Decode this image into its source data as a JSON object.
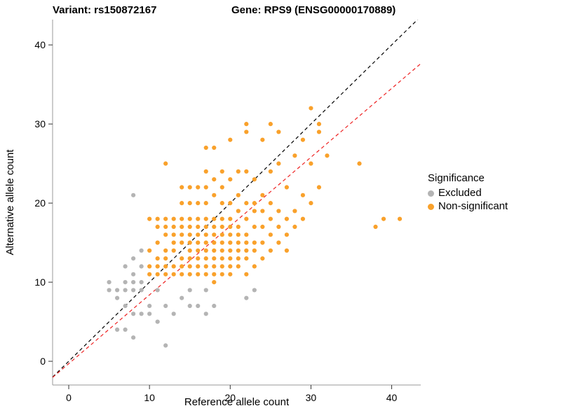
{
  "titles": {
    "variant": "Variant: rs150872167",
    "gene": "Gene: RPS9 (ENSG00000170889)"
  },
  "legend": {
    "title": "Significance",
    "items": [
      {
        "label": "Excluded",
        "color": "#B4B4B4"
      },
      {
        "label": "Non-significant",
        "color": "#F9A12B"
      }
    ]
  },
  "chart_data": {
    "type": "scatter",
    "xlabel": "Reference allele count",
    "ylabel": "Alternative allele count",
    "xlim": [
      -2,
      43.6
    ],
    "ylim": [
      -3,
      43.2
    ],
    "xticks": [
      0,
      10,
      20,
      30,
      40
    ],
    "yticks": [
      0,
      10,
      20,
      30,
      40
    ],
    "grid": false,
    "legend_position": "right",
    "axis_color": "#9a9a9a",
    "tick_color": "#333333",
    "lines": [
      {
        "name": "identity",
        "slope": 1.0,
        "intercept": 0.0,
        "color": "#000000",
        "dash": "5,4"
      },
      {
        "name": "fit",
        "slope": 0.87,
        "intercept": -0.3,
        "color": "#EE2222",
        "dash": "5,4"
      }
    ],
    "series": [
      {
        "name": "Excluded",
        "color": "#B4B4B4",
        "points": [
          [
            5,
            9
          ],
          [
            5,
            10
          ],
          [
            6,
            4
          ],
          [
            6,
            8
          ],
          [
            6,
            9
          ],
          [
            7,
            4
          ],
          [
            7,
            7
          ],
          [
            7,
            9
          ],
          [
            7,
            10
          ],
          [
            7,
            12
          ],
          [
            8,
            3
          ],
          [
            8,
            6
          ],
          [
            8,
            9
          ],
          [
            8,
            10
          ],
          [
            8,
            11
          ],
          [
            8,
            13
          ],
          [
            8,
            21
          ],
          [
            9,
            6
          ],
          [
            9,
            9
          ],
          [
            9,
            10
          ],
          [
            9,
            12
          ],
          [
            9,
            14
          ],
          [
            10,
            6
          ],
          [
            10,
            7
          ],
          [
            11,
            5
          ],
          [
            11,
            9
          ],
          [
            12,
            2
          ],
          [
            12,
            7
          ],
          [
            13,
            6
          ],
          [
            14,
            8
          ],
          [
            15,
            7
          ],
          [
            15,
            9
          ],
          [
            16,
            7
          ],
          [
            17,
            6
          ],
          [
            17,
            9
          ],
          [
            18,
            7
          ],
          [
            22,
            8
          ],
          [
            23,
            9
          ]
        ]
      },
      {
        "name": "Non-significant",
        "color": "#F9A12B",
        "points": [
          [
            10,
            11
          ],
          [
            10,
            12
          ],
          [
            10,
            14
          ],
          [
            10,
            18
          ],
          [
            11,
            11
          ],
          [
            11,
            12
          ],
          [
            11,
            13
          ],
          [
            11,
            15
          ],
          [
            11,
            17
          ],
          [
            11,
            18
          ],
          [
            12,
            11
          ],
          [
            12,
            12
          ],
          [
            12,
            13
          ],
          [
            12,
            14
          ],
          [
            12,
            16
          ],
          [
            12,
            17
          ],
          [
            12,
            18
          ],
          [
            12,
            25
          ],
          [
            13,
            11
          ],
          [
            13,
            12
          ],
          [
            13,
            14
          ],
          [
            13,
            15
          ],
          [
            13,
            16
          ],
          [
            13,
            17
          ],
          [
            13,
            18
          ],
          [
            14,
            11
          ],
          [
            14,
            12
          ],
          [
            14,
            13
          ],
          [
            14,
            15
          ],
          [
            14,
            16
          ],
          [
            14,
            17
          ],
          [
            14,
            18
          ],
          [
            14,
            20
          ],
          [
            14,
            22
          ],
          [
            15,
            11
          ],
          [
            15,
            12
          ],
          [
            15,
            13
          ],
          [
            15,
            14
          ],
          [
            15,
            15
          ],
          [
            15,
            16
          ],
          [
            15,
            17
          ],
          [
            15,
            18
          ],
          [
            15,
            20
          ],
          [
            15,
            22
          ],
          [
            16,
            11
          ],
          [
            16,
            12
          ],
          [
            16,
            13
          ],
          [
            16,
            14
          ],
          [
            16,
            15
          ],
          [
            16,
            16
          ],
          [
            16,
            17
          ],
          [
            16,
            18
          ],
          [
            16,
            20
          ],
          [
            16,
            22
          ],
          [
            17,
            11
          ],
          [
            17,
            12
          ],
          [
            17,
            13
          ],
          [
            17,
            14
          ],
          [
            17,
            15
          ],
          [
            17,
            16
          ],
          [
            17,
            17
          ],
          [
            17,
            18
          ],
          [
            17,
            20
          ],
          [
            17,
            22
          ],
          [
            17,
            24
          ],
          [
            17,
            27
          ],
          [
            18,
            10
          ],
          [
            18,
            11
          ],
          [
            18,
            12
          ],
          [
            18,
            13
          ],
          [
            18,
            14
          ],
          [
            18,
            15
          ],
          [
            18,
            16
          ],
          [
            18,
            17
          ],
          [
            18,
            18
          ],
          [
            18,
            21
          ],
          [
            18,
            23
          ],
          [
            18,
            27
          ],
          [
            19,
            11
          ],
          [
            19,
            12
          ],
          [
            19,
            13
          ],
          [
            19,
            14
          ],
          [
            19,
            15
          ],
          [
            19,
            16
          ],
          [
            19,
            17
          ],
          [
            19,
            18
          ],
          [
            19,
            20
          ],
          [
            19,
            22
          ],
          [
            19,
            24
          ],
          [
            20,
            11
          ],
          [
            20,
            12
          ],
          [
            20,
            13
          ],
          [
            20,
            14
          ],
          [
            20,
            15
          ],
          [
            20,
            16
          ],
          [
            20,
            17
          ],
          [
            20,
            18
          ],
          [
            20,
            20
          ],
          [
            20,
            23
          ],
          [
            20,
            28
          ],
          [
            21,
            12
          ],
          [
            21,
            13
          ],
          [
            21,
            14
          ],
          [
            21,
            15
          ],
          [
            21,
            16
          ],
          [
            21,
            17
          ],
          [
            21,
            19
          ],
          [
            21,
            21
          ],
          [
            21,
            24
          ],
          [
            22,
            11
          ],
          [
            22,
            13
          ],
          [
            22,
            14
          ],
          [
            22,
            15
          ],
          [
            22,
            16
          ],
          [
            22,
            18
          ],
          [
            22,
            20
          ],
          [
            22,
            24
          ],
          [
            22,
            29
          ],
          [
            22,
            30
          ],
          [
            23,
            12
          ],
          [
            23,
            14
          ],
          [
            23,
            15
          ],
          [
            23,
            17
          ],
          [
            23,
            19
          ],
          [
            23,
            20
          ],
          [
            23,
            23
          ],
          [
            24,
            13
          ],
          [
            24,
            15
          ],
          [
            24,
            17
          ],
          [
            24,
            19
          ],
          [
            24,
            21
          ],
          [
            24,
            28
          ],
          [
            25,
            14
          ],
          [
            25,
            16
          ],
          [
            25,
            18
          ],
          [
            25,
            20
          ],
          [
            25,
            24
          ],
          [
            25,
            30
          ],
          [
            26,
            15
          ],
          [
            26,
            17
          ],
          [
            26,
            19
          ],
          [
            26,
            25
          ],
          [
            26,
            29
          ],
          [
            27,
            14
          ],
          [
            27,
            16
          ],
          [
            27,
            18
          ],
          [
            27,
            22
          ],
          [
            28,
            17
          ],
          [
            28,
            19
          ],
          [
            28,
            26
          ],
          [
            29,
            18
          ],
          [
            29,
            21
          ],
          [
            29,
            28
          ],
          [
            30,
            20
          ],
          [
            30,
            25
          ],
          [
            30,
            32
          ],
          [
            31,
            22
          ],
          [
            31,
            29
          ],
          [
            31,
            30
          ],
          [
            32,
            26
          ],
          [
            36,
            25
          ],
          [
            38,
            17
          ],
          [
            39,
            18
          ],
          [
            41,
            18
          ]
        ]
      }
    ]
  }
}
